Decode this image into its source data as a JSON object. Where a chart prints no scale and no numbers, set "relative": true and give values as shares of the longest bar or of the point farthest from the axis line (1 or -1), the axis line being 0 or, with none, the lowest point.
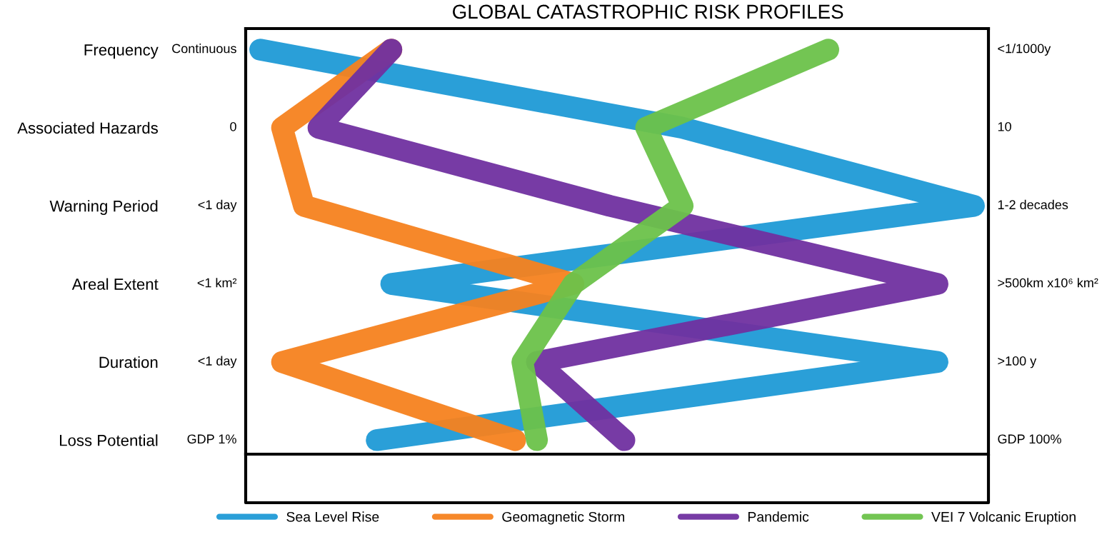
{
  "chart_data": {
    "type": "line",
    "title": "GLOBAL CATASTROPHIC RISK PROFILES",
    "relative": true,
    "orientation": "horizontal",
    "categories": [
      "Frequency",
      "Associated Hazards",
      "Warning Period",
      "Areal Extent",
      "Duration",
      "Loss Potential"
    ],
    "series": [
      {
        "name": "Sea Level Rise",
        "color": "#1f9ad6",
        "values": [
          0.02,
          0.6,
          1.0,
          0.2,
          0.95,
          0.18
        ]
      },
      {
        "name": "Geomagnetic Storm",
        "color": "#f5821f",
        "values": [
          0.2,
          0.05,
          0.08,
          0.45,
          0.05,
          0.37
        ]
      },
      {
        "name": "Pandemic",
        "color": "#7030a0",
        "values": [
          0.2,
          0.1,
          0.5,
          0.95,
          0.4,
          0.52
        ]
      },
      {
        "name": "VEI 7 Volcanic Eruption",
        "color": "#6cc24a",
        "values": [
          0.8,
          0.55,
          0.6,
          0.45,
          0.38,
          0.4
        ]
      }
    ],
    "annotations": [
      "Continuous",
      "0",
      "<1 day",
      "<1 km²",
      "<1 day",
      "GDP 1%",
      "<1/1000y",
      "10",
      "1-2 decades",
      ">500km x10⁶ km²",
      ">100 y",
      "GDP 100%"
    ],
    "legend": "bottom",
    "grid": false,
    "line_style": "solid",
    "marker": "none"
  }
}
